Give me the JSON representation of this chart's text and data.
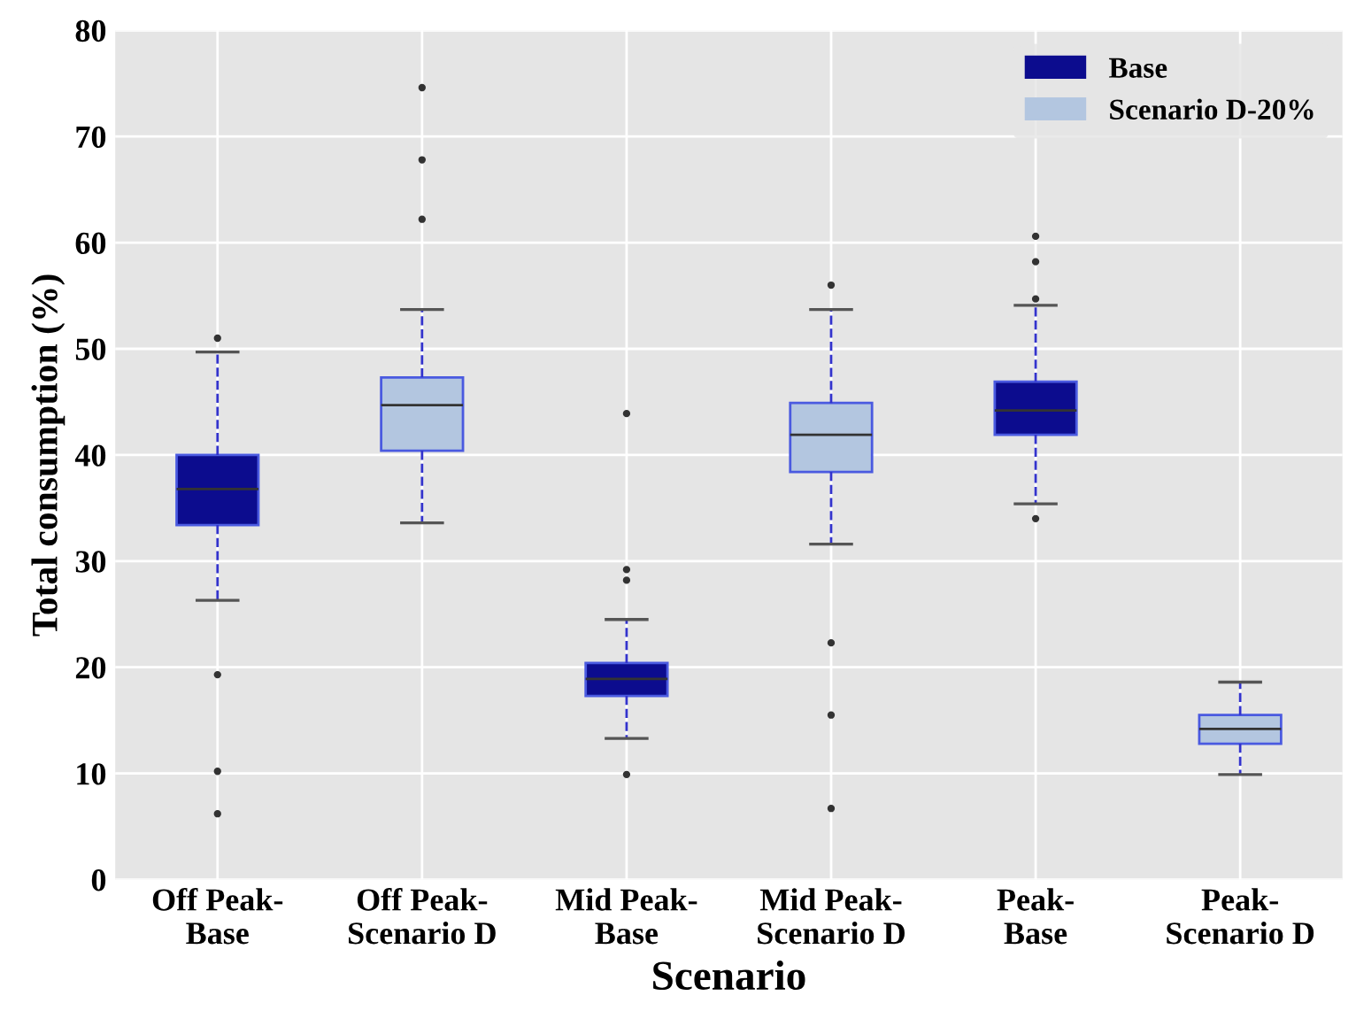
{
  "chart_data": {
    "type": "box",
    "xlabel": "Scenario",
    "ylabel": "Total consumption (%)",
    "categories": [
      "Off Peak-\nBase",
      "Off Peak-\nScenario D",
      "Mid Peak-\nBase",
      "Mid Peak-\nScenario D",
      "Peak-\nBase",
      "Peak-\nScenario D"
    ],
    "ylim": [
      0,
      80
    ],
    "yticks": [
      0,
      10,
      20,
      30,
      40,
      50,
      60,
      70,
      80
    ],
    "grid": true,
    "legend": "top right",
    "series": [
      {
        "name": "Base",
        "color": "#0c0c8e",
        "boxes": [
          {
            "low": 26.3,
            "q1": 33.4,
            "median": 36.8,
            "q3": 40.0,
            "high": 49.7,
            "outliers": [
              51.0,
              19.3,
              10.2,
              6.2
            ]
          },
          null,
          {
            "low": 13.3,
            "q1": 17.3,
            "median": 18.9,
            "q3": 20.4,
            "high": 24.5,
            "outliers": [
              43.9,
              29.2,
              28.2,
              9.9
            ]
          },
          null,
          {
            "low": 35.4,
            "q1": 41.9,
            "median": 44.2,
            "q3": 46.9,
            "high": 54.1,
            "outliers": [
              60.6,
              58.2,
              54.7,
              34.0
            ]
          },
          null
        ]
      },
      {
        "name": "Scenario D-20%",
        "color": "#b3c6e0",
        "boxes": [
          null,
          {
            "low": 33.6,
            "q1": 40.4,
            "median": 44.7,
            "q3": 47.3,
            "high": 53.7,
            "outliers": [
              74.6,
              67.8,
              62.2
            ]
          },
          null,
          {
            "low": 31.6,
            "q1": 38.4,
            "median": 41.9,
            "q3": 44.9,
            "high": 53.7,
            "outliers": [
              56.0,
              22.3,
              15.5,
              6.7
            ]
          },
          null,
          {
            "low": 9.9,
            "q1": 12.8,
            "median": 14.2,
            "q3": 15.5,
            "high": 18.6
          }
        ]
      }
    ]
  }
}
